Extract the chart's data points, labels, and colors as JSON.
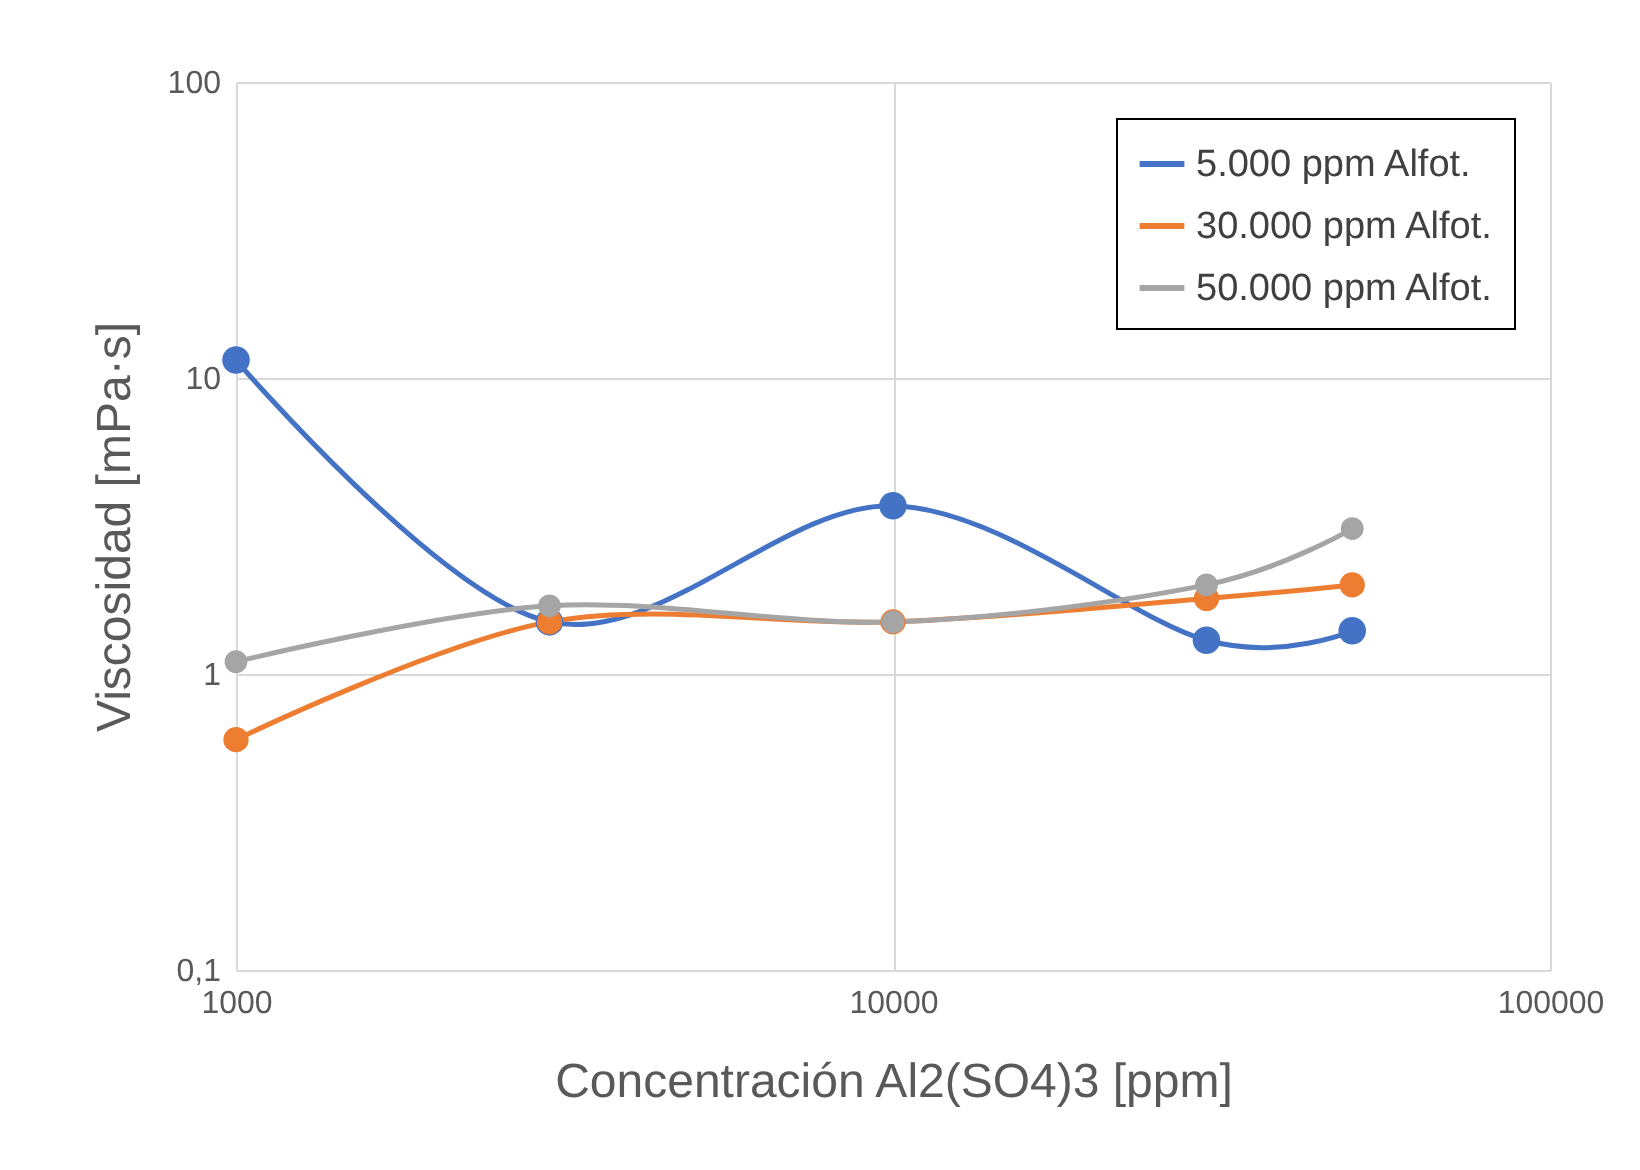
{
  "chart_data": {
    "type": "line",
    "xlabel": "Concentración Al2(SO4)3 [ppm]",
    "ylabel": "Viscosidad [mPa·s]",
    "x": [
      1000,
      3000,
      10000,
      30000,
      50000
    ],
    "series": [
      {
        "name": "5.000 ppm Alfot.",
        "color": "#4472c4",
        "values": [
          11.5,
          1.5,
          3.7,
          1.3,
          1.4
        ]
      },
      {
        "name": "30.000 ppm Alfot.",
        "color": "#ed7d31",
        "values": [
          0.6,
          1.5,
          1.5,
          1.8,
          2.0
        ]
      },
      {
        "name": "50.000 ppm Alfot.",
        "color": "#a5a5a5",
        "values": [
          1.1,
          1.7,
          1.5,
          2.0,
          3.1
        ]
      }
    ],
    "log": "xy",
    "xlim": [
      1000,
      100000
    ],
    "xticks": [
      1000,
      10000,
      100000
    ],
    "ylim": [
      0.1,
      100
    ],
    "yticks": [
      {
        "value": 0.1,
        "label": "0,1"
      },
      1,
      10,
      100
    ],
    "grid": true,
    "legend": "top right",
    "marker": "circle",
    "line_style": "solid"
  }
}
